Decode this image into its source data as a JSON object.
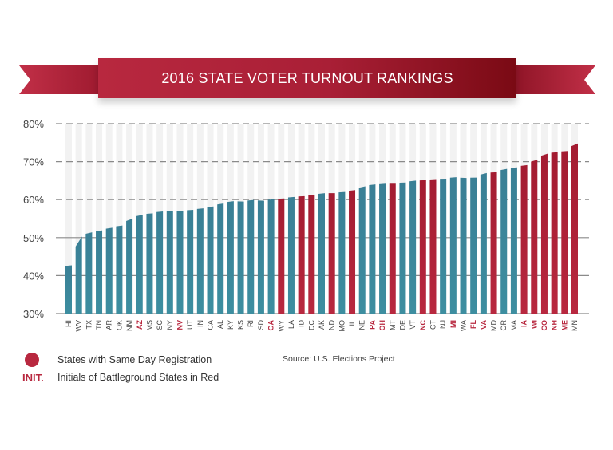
{
  "title": "2016 STATE VOTER TURNOUT RANKINGS",
  "legend": {
    "same_day_label": "States with Same Day Registration",
    "init_marker": "INIT.",
    "battleground_label": "Initials of Battleground States in Red"
  },
  "source": "Source: U.S. Elections Project",
  "colors": {
    "standard": "#3d8ea0",
    "same_day_registration": "#b8283f",
    "battleground_label": "#b8283f",
    "background_bar": "#f2f2f2"
  },
  "chart_data": {
    "type": "bar",
    "title": "2016 STATE VOTER TURNOUT RANKINGS",
    "xlabel": "",
    "ylabel": "",
    "ylim": [
      30,
      80
    ],
    "yticks": [
      "30%",
      "40%",
      "50%",
      "60%",
      "70%",
      "80%"
    ],
    "ytick_values": [
      30,
      40,
      50,
      60,
      70,
      80
    ],
    "grid": true,
    "legend_position": "bottom-left",
    "categories": [
      "HI",
      "WV",
      "TX",
      "TN",
      "AR",
      "OK",
      "NM",
      "AZ",
      "MS",
      "SC",
      "NY",
      "NV",
      "UT",
      "IN",
      "CA",
      "AL",
      "KY",
      "KS",
      "RI",
      "SD",
      "GA",
      "WY",
      "LA",
      "ID",
      "DC",
      "AK",
      "ND",
      "MO",
      "IL",
      "NE",
      "PA",
      "OH",
      "MT",
      "DE",
      "VT",
      "NC",
      "CT",
      "NJ",
      "MI",
      "WA",
      "FL",
      "VA",
      "MD",
      "OR",
      "MA",
      "IA",
      "WI",
      "CO",
      "NH",
      "ME",
      "MN"
    ],
    "values": [
      42.7,
      50.3,
      51.4,
      51.9,
      52.6,
      53.2,
      55.0,
      56.0,
      56.4,
      56.9,
      57.1,
      57.0,
      57.3,
      57.7,
      58.2,
      59.0,
      59.6,
      59.5,
      59.9,
      59.7,
      60.1,
      60.3,
      60.7,
      60.9,
      61.2,
      61.7,
      61.7,
      62.0,
      62.5,
      63.5,
      64.0,
      64.4,
      64.4,
      64.5,
      65.0,
      65.1,
      65.4,
      65.5,
      65.9,
      65.7,
      65.8,
      67.0,
      67.2,
      68.1,
      68.5,
      69.1,
      70.5,
      72.1,
      72.5,
      72.8,
      74.8
    ],
    "same_day_registration": [
      false,
      false,
      false,
      false,
      false,
      false,
      false,
      false,
      false,
      false,
      false,
      false,
      false,
      false,
      false,
      false,
      false,
      false,
      false,
      false,
      false,
      true,
      false,
      true,
      true,
      false,
      true,
      false,
      true,
      false,
      false,
      false,
      true,
      false,
      false,
      true,
      true,
      false,
      false,
      false,
      false,
      false,
      true,
      false,
      false,
      true,
      true,
      true,
      true,
      true,
      true
    ],
    "battleground": [
      false,
      false,
      false,
      false,
      false,
      false,
      false,
      true,
      false,
      false,
      false,
      true,
      false,
      false,
      false,
      false,
      false,
      false,
      false,
      false,
      true,
      false,
      false,
      false,
      false,
      false,
      false,
      false,
      false,
      false,
      true,
      true,
      false,
      false,
      false,
      true,
      false,
      false,
      true,
      false,
      true,
      true,
      false,
      false,
      false,
      true,
      true,
      true,
      true,
      true,
      false
    ]
  }
}
